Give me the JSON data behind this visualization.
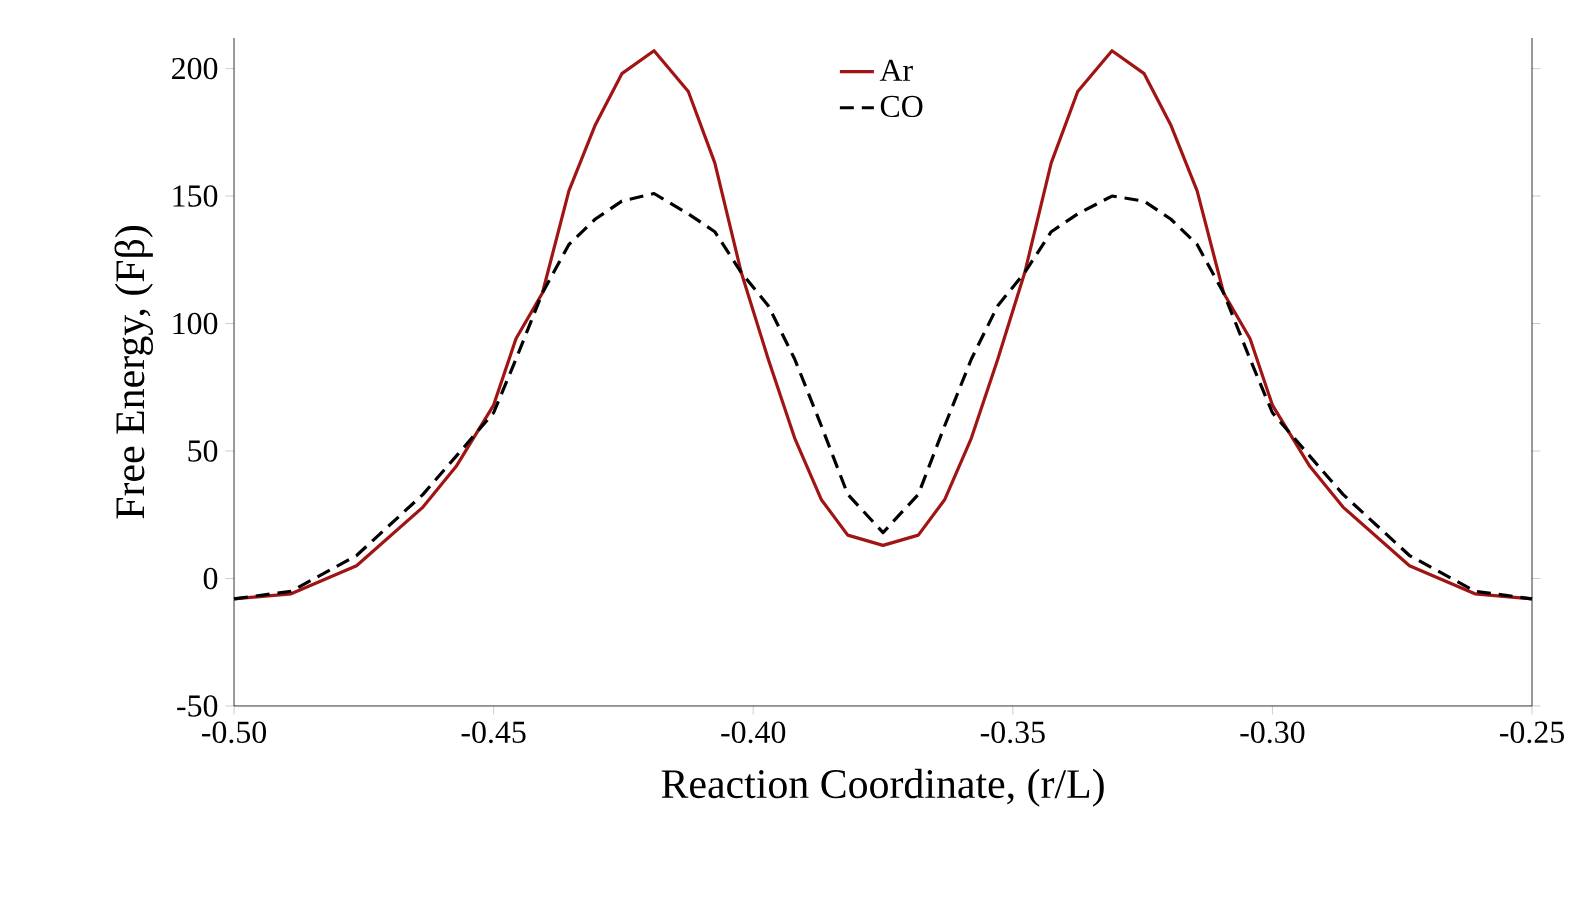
{
  "chart_data": {
    "type": "line",
    "xlabel": "Reaction Coordinate, (r/L)",
    "ylabel": "Free Energy, (Fβ)",
    "x": [
      -0.5,
      -0.489,
      -0.4764,
      -0.4636,
      -0.4572,
      -0.45,
      -0.4457,
      -0.4406,
      -0.4355,
      -0.4304,
      -0.4253,
      -0.4191,
      -0.4125,
      -0.4074,
      -0.4023,
      -0.3971,
      -0.392,
      -0.3869,
      -0.3818,
      -0.375,
      -0.3682,
      -0.3631,
      -0.358,
      -0.3529,
      -0.3477,
      -0.3426,
      -0.3375,
      -0.3309,
      -0.3247,
      -0.3196,
      -0.3145,
      -0.3094,
      -0.3043,
      -0.3,
      -0.2928,
      -0.2864,
      -0.2736,
      -0.261,
      -0.25
    ],
    "series": [
      {
        "name": "Ar",
        "color": "#a01414",
        "line_style": "solid",
        "values": [
          -8,
          -6,
          5,
          28,
          44,
          68,
          94,
          112,
          152,
          178,
          198,
          207,
          191,
          163,
          120,
          86,
          55,
          31,
          17,
          13,
          17,
          31,
          55,
          86,
          120,
          163,
          191,
          207,
          198,
          178,
          152,
          112,
          94,
          68,
          44,
          28,
          5,
          -6,
          -8
        ]
      },
      {
        "name": "CO",
        "color": "#000000",
        "line_style": "dashed",
        "values": [
          -8,
          -5,
          9,
          33,
          48,
          65,
          86,
          112,
          131,
          141,
          148,
          151,
          143,
          136,
          120,
          107,
          86,
          60,
          33,
          18,
          33,
          60,
          86,
          107,
          120,
          136,
          143,
          150,
          148,
          141,
          131,
          112,
          86,
          65,
          48,
          33,
          9,
          -5,
          -8
        ]
      }
    ],
    "xlim": [
      -0.5,
      -0.25
    ],
    "xticks": [
      {
        "value": -0.5,
        "label": "-0.50"
      },
      {
        "value": -0.45,
        "label": "-0.45"
      },
      {
        "value": -0.4,
        "label": "-0.40"
      },
      {
        "value": -0.35,
        "label": "-0.35"
      },
      {
        "value": -0.3,
        "label": "-0.30"
      },
      {
        "value": -0.25,
        "label": "-0.25"
      }
    ],
    "ylim": [
      -50,
      212
    ],
    "yticks": [
      -50,
      0,
      50,
      100,
      150,
      200
    ],
    "grid": false,
    "legend": "top",
    "marker": "none"
  }
}
